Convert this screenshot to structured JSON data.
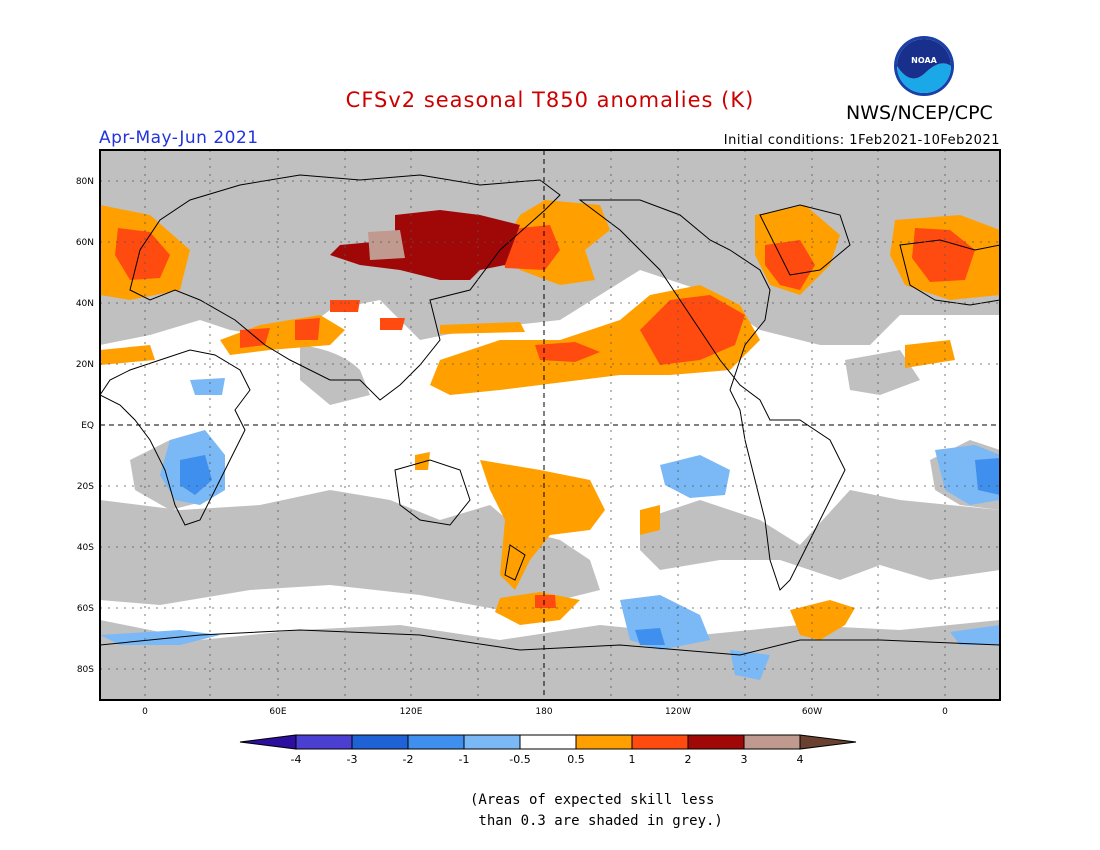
{
  "title": "CFSv2 seasonal T850 anomalies (K)",
  "org": "NWS/NCEP/CPC",
  "logo_text": "NOAA",
  "season": "Apr-May-Jun 2021",
  "init": "Initial conditions: 1Feb2021-10Feb2021",
  "colors": {
    "title": "#cc0000",
    "season": "#2233dd",
    "grey": "#c0c0c0"
  },
  "lat_labels": [
    "80N",
    "60N",
    "40N",
    "20N",
    "EQ",
    "20S",
    "40S",
    "60S",
    "80S"
  ],
  "lon_labels": [
    "0",
    "60E",
    "120E",
    "180",
    "120W",
    "60W",
    "0"
  ],
  "colorbar": {
    "ticks": [
      "-4",
      "-3",
      "-2",
      "-1",
      "-0.5",
      "0.5",
      "1",
      "2",
      "3",
      "4"
    ],
    "colors": [
      "#2d0fa0",
      "#4a3fd0",
      "#1f62d6",
      "#3f8fee",
      "#7ab8f6",
      "#ffffff",
      "#ffa000",
      "#ff4a10",
      "#a00808",
      "#c09a8e",
      "#6a4030"
    ]
  },
  "note": "(Areas of expected skill less\n than 0.3 are shaded in grey.)"
}
